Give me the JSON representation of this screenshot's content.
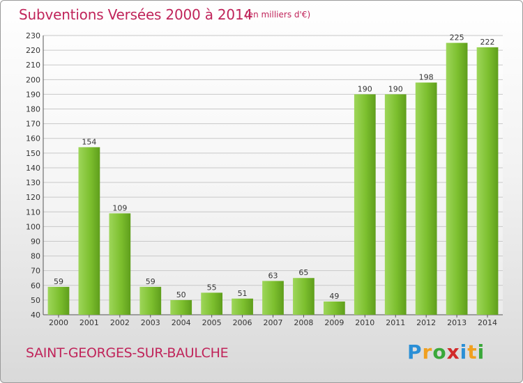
{
  "header": {
    "title": "Subventions Versées 2000 à 2014",
    "subtitle": "(en milliers d'€)"
  },
  "footer": {
    "commune": "SAINT-GEORGES-SUR-BAULCHE",
    "logo_letters": [
      "P",
      "r",
      "o",
      "x",
      "i",
      "t",
      "i"
    ],
    "logo_colors": [
      "#2a8fd6",
      "#f0a020",
      "#3aa83a",
      "#d12a2a",
      "#2a8fd6",
      "#f0a020",
      "#3aa83a"
    ]
  },
  "chart_data": {
    "type": "bar",
    "title": "Subventions Versées 2000 à 2014",
    "subtitle": "(en milliers d'€)",
    "categories": [
      "2000",
      "2001",
      "2002",
      "2003",
      "2004",
      "2005",
      "2006",
      "2007",
      "2008",
      "2009",
      "2010",
      "2011",
      "2012",
      "2013",
      "2014"
    ],
    "values": [
      59,
      154,
      109,
      59,
      50,
      55,
      51,
      63,
      65,
      49,
      190,
      190,
      198,
      225,
      222
    ],
    "ylim": [
      40,
      230
    ],
    "yticks": [
      40,
      50,
      60,
      70,
      80,
      90,
      100,
      110,
      120,
      130,
      140,
      150,
      160,
      170,
      180,
      190,
      200,
      210,
      220,
      230
    ],
    "grid": true,
    "bar_color": "#7cbf2e",
    "bar_color_dark": "#5f9e1c",
    "data_labels": true
  }
}
